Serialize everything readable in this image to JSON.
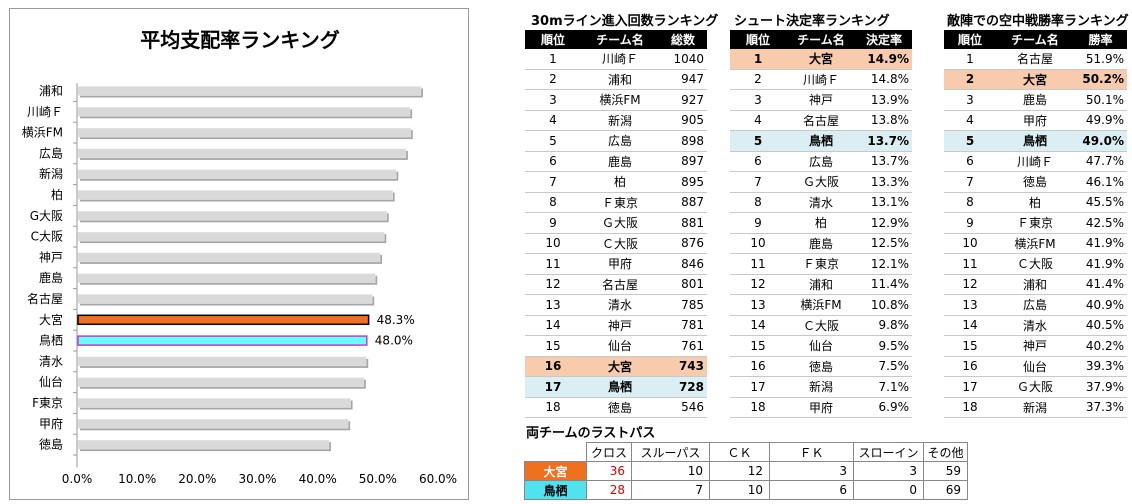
{
  "chart_data": {
    "type": "bar",
    "orientation": "horizontal",
    "title": "平均支配率ランキング",
    "categories": [
      "浦和",
      "川崎Ｆ",
      "横浜FM",
      "広島",
      "新潟",
      "柏",
      "G大阪",
      "C大阪",
      "神戸",
      "鹿島",
      "名古屋",
      "大宮",
      "鳥栖",
      "清水",
      "仙台",
      "F東京",
      "甲府",
      "徳島"
    ],
    "values": [
      57.0,
      55.2,
      55.3,
      54.5,
      52.9,
      52.3,
      51.3,
      50.9,
      50.2,
      49.4,
      48.9,
      48.3,
      48.0,
      47.9,
      47.5,
      45.3,
      44.9,
      41.7
    ],
    "highlight_labels": {
      "大宮": "48.3%",
      "鳥栖": "48.0%"
    },
    "colors": {
      "default": "#d9d9d9",
      "大宮": "#f07020",
      "鳥栖": "#66ffff"
    },
    "xlim": [
      0,
      60
    ],
    "xticks": [
      "0.0%",
      "10.0%",
      "20.0%",
      "30.0%",
      "40.0%",
      "50.0%",
      "60.0%"
    ],
    "xlabel": "",
    "ylabel": "",
    "grid": false,
    "legend": "none"
  },
  "tables": {
    "crosses": {
      "title": "30mライン進入回数ランキング",
      "headers": [
        "順位",
        "チーム名",
        "総数"
      ],
      "rows": [
        [
          "1",
          "川崎Ｆ",
          "1040",
          ""
        ],
        [
          "2",
          "浦和",
          "947",
          ""
        ],
        [
          "3",
          "横浜FM",
          "927",
          ""
        ],
        [
          "4",
          "新潟",
          "905",
          ""
        ],
        [
          "5",
          "広島",
          "898",
          ""
        ],
        [
          "6",
          "鹿島",
          "897",
          ""
        ],
        [
          "7",
          "柏",
          "895",
          ""
        ],
        [
          "8",
          "Ｆ東京",
          "887",
          ""
        ],
        [
          "9",
          "Ｇ大阪",
          "881",
          ""
        ],
        [
          "10",
          "Ｃ大阪",
          "876",
          ""
        ],
        [
          "11",
          "甲府",
          "846",
          ""
        ],
        [
          "12",
          "名古屋",
          "801",
          ""
        ],
        [
          "13",
          "清水",
          "785",
          ""
        ],
        [
          "14",
          "神戸",
          "781",
          ""
        ],
        [
          "15",
          "仙台",
          "761",
          ""
        ],
        [
          "16",
          "大宮",
          "743",
          "o"
        ],
        [
          "17",
          "鳥栖",
          "728",
          "b"
        ],
        [
          "18",
          "徳島",
          "546",
          ""
        ]
      ]
    },
    "shots": {
      "title": "シュート決定率ランキング",
      "headers": [
        "順位",
        "チーム名",
        "決定率"
      ],
      "rows": [
        [
          "1",
          "大宮",
          "14.9%",
          "o"
        ],
        [
          "2",
          "川崎Ｆ",
          "14.8%",
          ""
        ],
        [
          "3",
          "神戸",
          "13.9%",
          ""
        ],
        [
          "4",
          "名古屋",
          "13.8%",
          ""
        ],
        [
          "5",
          "鳥栖",
          "13.7%",
          "b"
        ],
        [
          "6",
          "広島",
          "13.7%",
          ""
        ],
        [
          "7",
          "Ｇ大阪",
          "13.3%",
          ""
        ],
        [
          "8",
          "清水",
          "13.1%",
          ""
        ],
        [
          "9",
          "柏",
          "12.9%",
          ""
        ],
        [
          "10",
          "鹿島",
          "12.5%",
          ""
        ],
        [
          "11",
          "Ｆ東京",
          "12.1%",
          ""
        ],
        [
          "12",
          "浦和",
          "11.4%",
          ""
        ],
        [
          "13",
          "横浜FM",
          "10.8%",
          ""
        ],
        [
          "14",
          "Ｃ大阪",
          "9.8%",
          ""
        ],
        [
          "15",
          "仙台",
          "9.5%",
          ""
        ],
        [
          "16",
          "徳島",
          "7.5%",
          ""
        ],
        [
          "17",
          "新潟",
          "7.1%",
          ""
        ],
        [
          "18",
          "甲府",
          "6.9%",
          ""
        ]
      ]
    },
    "aerial": {
      "title": "敵陣での空中戦勝率ランキング",
      "headers": [
        "順位",
        "チーム名",
        "勝率"
      ],
      "rows": [
        [
          "1",
          "名古屋",
          "51.9%",
          ""
        ],
        [
          "2",
          "大宮",
          "50.2%",
          "o"
        ],
        [
          "3",
          "鹿島",
          "50.1%",
          ""
        ],
        [
          "4",
          "甲府",
          "49.9%",
          ""
        ],
        [
          "5",
          "鳥栖",
          "49.0%",
          "b"
        ],
        [
          "6",
          "川崎Ｆ",
          "47.7%",
          ""
        ],
        [
          "7",
          "徳島",
          "46.1%",
          ""
        ],
        [
          "8",
          "柏",
          "45.5%",
          ""
        ],
        [
          "9",
          "Ｆ東京",
          "42.5%",
          ""
        ],
        [
          "10",
          "横浜FM",
          "41.9%",
          ""
        ],
        [
          "11",
          "Ｃ大阪",
          "41.9%",
          ""
        ],
        [
          "12",
          "浦和",
          "41.4%",
          ""
        ],
        [
          "13",
          "広島",
          "40.9%",
          ""
        ],
        [
          "14",
          "清水",
          "40.5%",
          ""
        ],
        [
          "15",
          "神戸",
          "40.2%",
          ""
        ],
        [
          "16",
          "仙台",
          "39.3%",
          ""
        ],
        [
          "17",
          "Ｇ大阪",
          "37.9%",
          ""
        ],
        [
          "18",
          "新潟",
          "37.3%",
          ""
        ]
      ]
    }
  },
  "last_pass": {
    "title": "両チームのラストパス",
    "headers": [
      "クロス",
      "スルーパス",
      "ＣＫ",
      "ＦＫ",
      "スローイン",
      "その他"
    ],
    "rows": [
      {
        "team": "大宮",
        "values": [
          "36",
          "10",
          "12",
          "3",
          "3",
          "59"
        ]
      },
      {
        "team": "鳥栖",
        "values": [
          "28",
          "7",
          "10",
          "6",
          "0",
          "69"
        ]
      }
    ]
  }
}
